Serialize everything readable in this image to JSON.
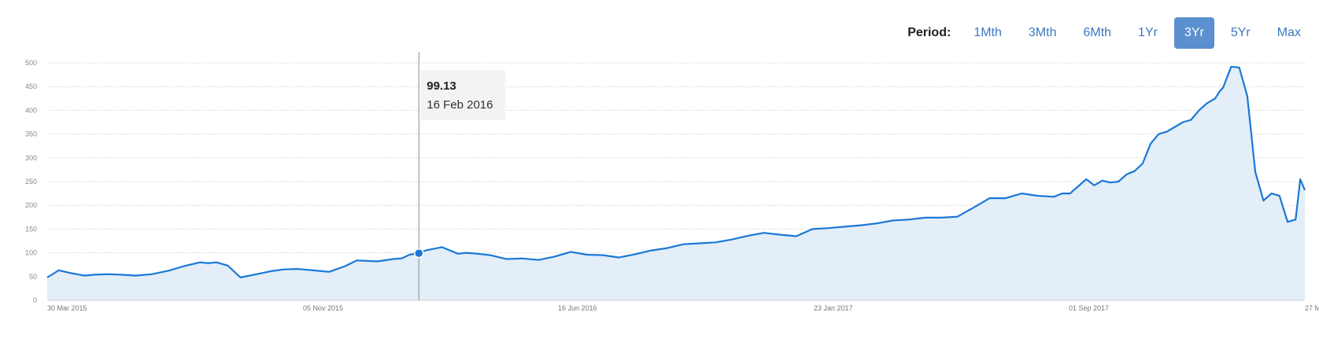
{
  "period": {
    "label": "Period:",
    "options": [
      "1Mth",
      "3Mth",
      "6Mth",
      "1Yr",
      "3Yr",
      "5Yr",
      "Max"
    ],
    "selected": "3Yr"
  },
  "tooltip": {
    "value": "99.13",
    "date": "16 Feb 2016"
  },
  "colors": {
    "line": "#1a78d6",
    "fill": "#e3eef9",
    "accent": "#5b8fd0",
    "grid": "#d6d6d6"
  },
  "chart_data": {
    "type": "area",
    "x_axis_type": "date",
    "x_ticks": [
      "30 Mar 2015",
      "05 Nov 2015",
      "16 Jun 2016",
      "23 Jan 2017",
      "01 Sep 2017",
      "27 M"
    ],
    "y_ticks": [
      0,
      50,
      100,
      150,
      200,
      250,
      300,
      350,
      400,
      450,
      500
    ],
    "ylim": [
      0,
      500
    ],
    "xlim": [
      "2015-03-30",
      "2018-03-27"
    ],
    "grid": true,
    "highlight": {
      "x": "2016-02-16",
      "y": 99.13
    },
    "series": [
      {
        "x": [
          "2015-03-30",
          "2015-04-09",
          "2015-04-20",
          "2015-05-01",
          "2015-05-11",
          "2015-05-22",
          "2015-06-01",
          "2015-06-15",
          "2015-06-29",
          "2015-07-13",
          "2015-07-27",
          "2015-08-10",
          "2015-08-17",
          "2015-08-24",
          "2015-09-03",
          "2015-09-14",
          "2015-09-28",
          "2015-10-12",
          "2015-10-22",
          "2015-11-02",
          "2015-11-16",
          "2015-11-30",
          "2015-12-14",
          "2015-12-24",
          "2016-01-11",
          "2016-01-25",
          "2016-02-01",
          "2016-02-08",
          "2016-02-16",
          "2016-02-22",
          "2016-03-07",
          "2016-03-21",
          "2016-03-28",
          "2016-04-07",
          "2016-04-18",
          "2016-05-02",
          "2016-05-16",
          "2016-05-30",
          "2016-06-13",
          "2016-06-27",
          "2016-07-11",
          "2016-07-25",
          "2016-08-08",
          "2016-08-22",
          "2016-09-05",
          "2016-09-19",
          "2016-10-03",
          "2016-10-17",
          "2016-10-31",
          "2016-11-14",
          "2016-11-28",
          "2016-12-12",
          "2016-12-26",
          "2017-01-09",
          "2017-01-23",
          "2017-02-06",
          "2017-02-20",
          "2017-03-06",
          "2017-03-20",
          "2017-04-03",
          "2017-04-17",
          "2017-05-01",
          "2017-05-15",
          "2017-05-29",
          "2017-06-12",
          "2017-06-19",
          "2017-06-26",
          "2017-07-10",
          "2017-07-24",
          "2017-08-07",
          "2017-08-21",
          "2017-08-28",
          "2017-09-04",
          "2017-09-11",
          "2017-09-18",
          "2017-09-25",
          "2017-10-02",
          "2017-10-09",
          "2017-10-16",
          "2017-10-23",
          "2017-10-30",
          "2017-11-06",
          "2017-11-13",
          "2017-11-20",
          "2017-11-27",
          "2017-12-04",
          "2017-12-11",
          "2017-12-18",
          "2017-12-25",
          "2018-01-01",
          "2018-01-08",
          "2018-01-12",
          "2018-01-15",
          "2018-01-22",
          "2018-01-29",
          "2018-02-05",
          "2018-02-12",
          "2018-02-19",
          "2018-02-26",
          "2018-03-05",
          "2018-03-12",
          "2018-03-19",
          "2018-03-23",
          "2018-03-27"
        ],
        "y": [
          48,
          63,
          57,
          52,
          54,
          55,
          54,
          52,
          55,
          62,
          72,
          80,
          78,
          80,
          73,
          48,
          55,
          62,
          65,
          66,
          63,
          60,
          72,
          84,
          82,
          87,
          88,
          96,
          99.13,
          105,
          112,
          98,
          100,
          98,
          95,
          87,
          88,
          85,
          92,
          102,
          96,
          95,
          90,
          97,
          105,
          110,
          118,
          120,
          122,
          128,
          136,
          142,
          138,
          135,
          150,
          152,
          155,
          158,
          162,
          168,
          170,
          174,
          174,
          176,
          195,
          205,
          215,
          215,
          225,
          220,
          218,
          225,
          225,
          240,
          255,
          242,
          252,
          248,
          250,
          265,
          272,
          288,
          330,
          350,
          355,
          365,
          375,
          380,
          400,
          415,
          425,
          440,
          448,
          492,
          490,
          430,
          270,
          210,
          225,
          220,
          165,
          170,
          255,
          232
        ]
      }
    ]
  }
}
